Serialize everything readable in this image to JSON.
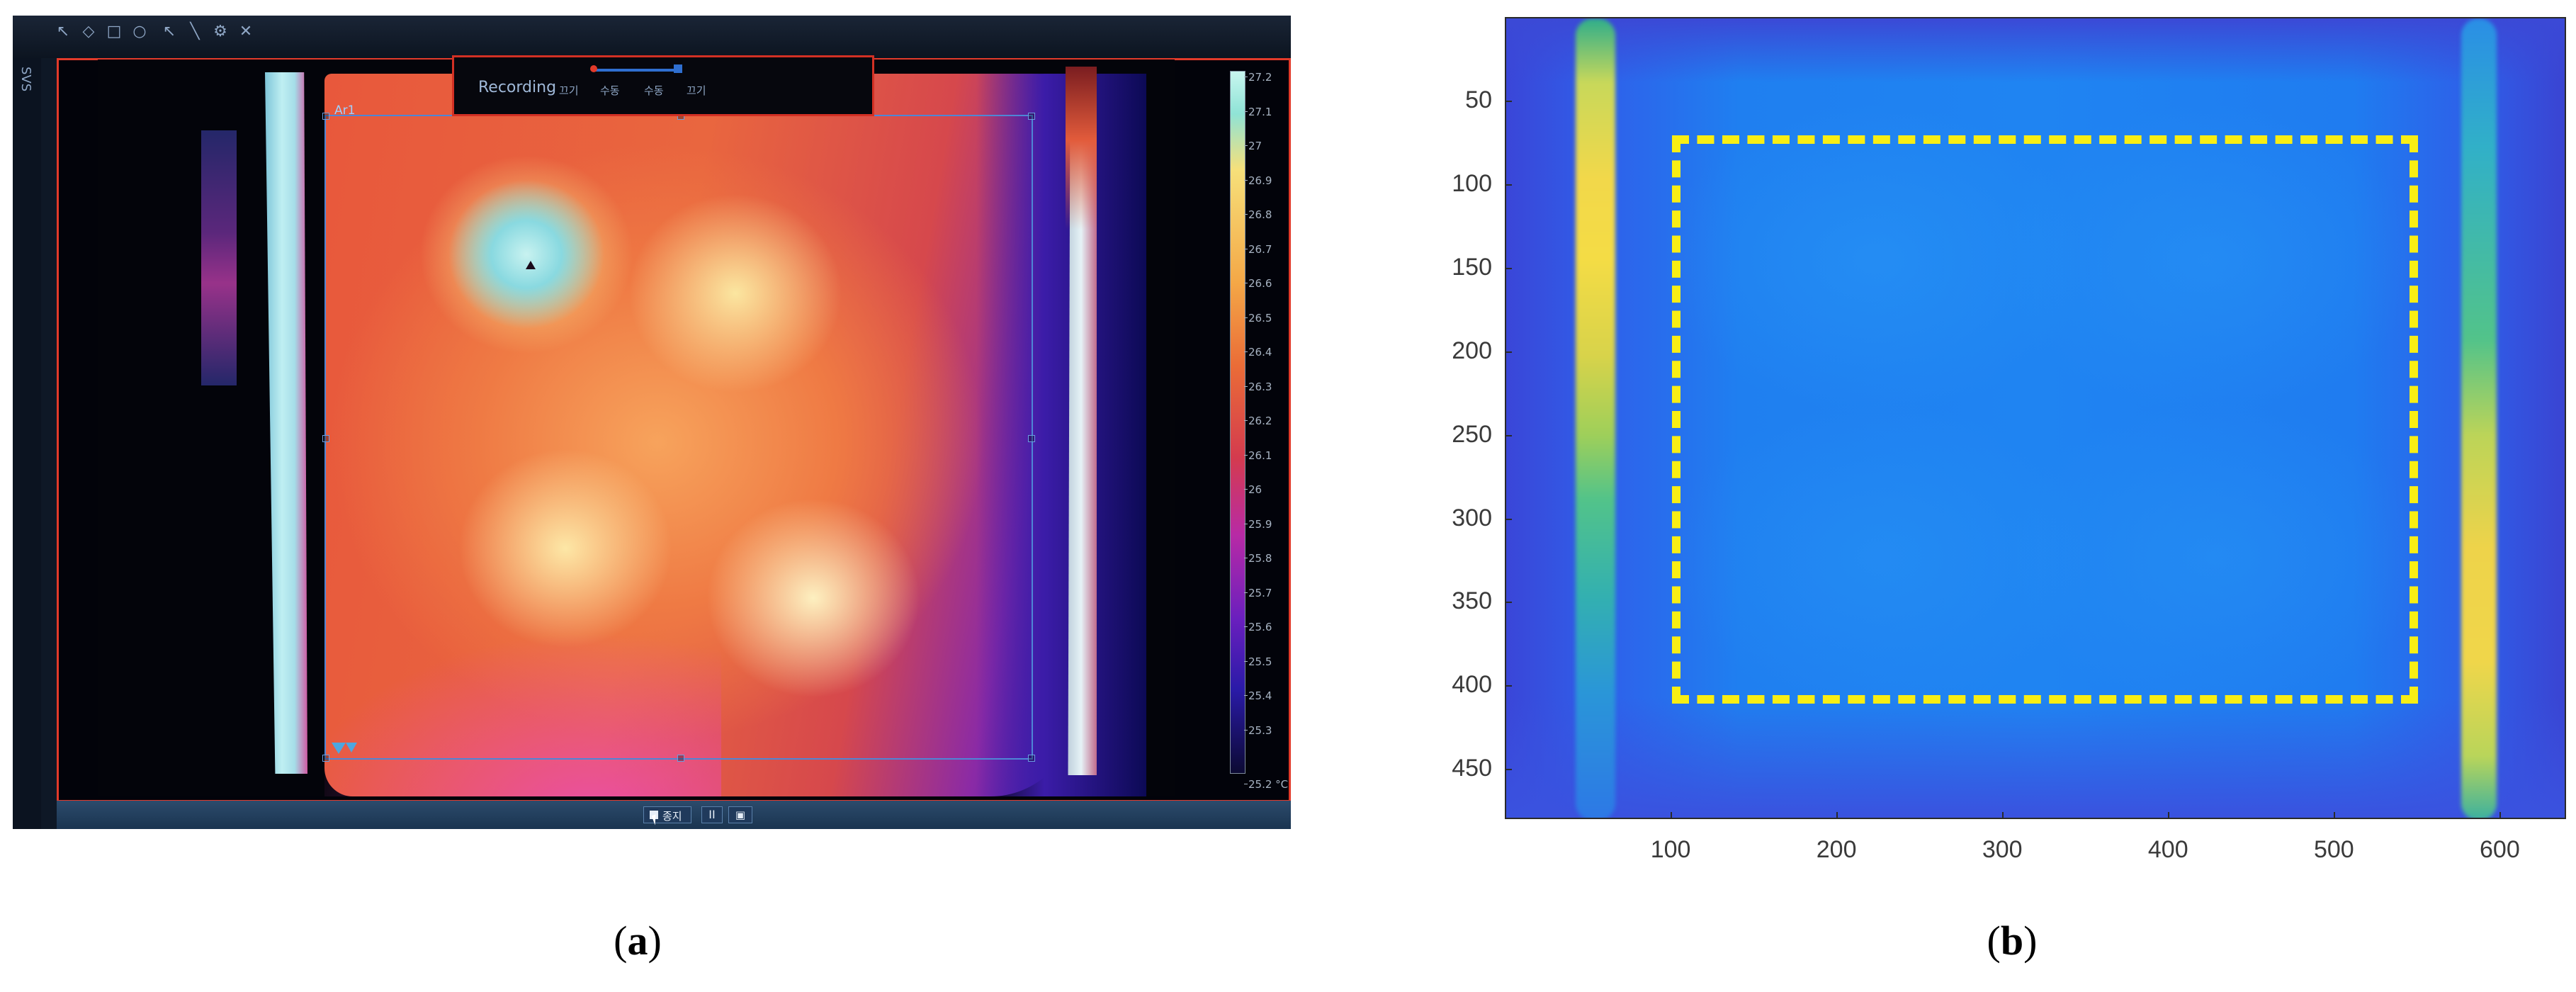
{
  "panel_a": {
    "caption_letter": "a",
    "recording": {
      "label": "Recording",
      "buttons": [
        "끄기",
        "수동",
        "수동",
        "끄기"
      ]
    },
    "roi_label": "Ar1",
    "left_toolbar_text": "SVS",
    "colorbar": {
      "ticks": [
        "27.2",
        "27.1",
        "27",
        "26.9",
        "26.8",
        "26.7",
        "26.6",
        "26.5",
        "26.4",
        "26.3",
        "26.2",
        "26.1",
        "26",
        "25.9",
        "25.8",
        "25.7",
        "25.6",
        "25.5",
        "25.4",
        "25.3"
      ],
      "min_label": "25.2 °C"
    },
    "controls": {
      "stop_label": "종지",
      "pause_label": "II",
      "snapshot_label": "▣"
    },
    "colors": {
      "frame_border": "#e23a2a",
      "roi_border": "#4e86d6"
    }
  },
  "panel_b": {
    "caption_letter": "b",
    "colors": {
      "roi_dashed_border": "#f8ee14",
      "background_blue": "#1f84f2"
    }
  },
  "chart_data": {
    "type": "heatmap",
    "title": "",
    "xlabel": "",
    "ylabel": "",
    "x_ticks": [
      100,
      200,
      300,
      400,
      500,
      600
    ],
    "y_ticks": [
      50,
      100,
      150,
      200,
      250,
      300,
      350,
      400,
      450
    ],
    "xlim": [
      0,
      640
    ],
    "ylim": [
      480,
      0
    ],
    "grid": false,
    "colormap": "parula",
    "roi_rectangle": {
      "x": [
        100,
        550
      ],
      "y": [
        70,
        410
      ],
      "style": "yellow dashed"
    }
  }
}
